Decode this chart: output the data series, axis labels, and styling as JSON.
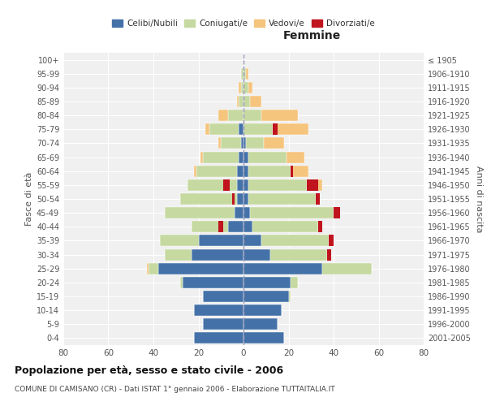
{
  "age_groups": [
    "0-4",
    "5-9",
    "10-14",
    "15-19",
    "20-24",
    "25-29",
    "30-34",
    "35-39",
    "40-44",
    "45-49",
    "50-54",
    "55-59",
    "60-64",
    "65-69",
    "70-74",
    "75-79",
    "80-84",
    "85-89",
    "90-94",
    "95-99",
    "100+"
  ],
  "birth_years": [
    "2001-2005",
    "1996-2000",
    "1991-1995",
    "1986-1990",
    "1981-1985",
    "1976-1980",
    "1971-1975",
    "1966-1970",
    "1961-1965",
    "1956-1960",
    "1951-1955",
    "1946-1950",
    "1941-1945",
    "1936-1940",
    "1931-1935",
    "1926-1930",
    "1921-1925",
    "1916-1920",
    "1911-1915",
    "1906-1910",
    "≤ 1905"
  ],
  "male": {
    "celibi": [
      22,
      18,
      22,
      18,
      27,
      38,
      23,
      20,
      7,
      4,
      3,
      3,
      3,
      2,
      1,
      2,
      0,
      0,
      0,
      0,
      0
    ],
    "coniugati": [
      0,
      0,
      0,
      0,
      1,
      4,
      12,
      17,
      16,
      31,
      25,
      22,
      18,
      16,
      9,
      13,
      7,
      2,
      1,
      1,
      0
    ],
    "vedovi": [
      0,
      0,
      0,
      0,
      0,
      1,
      0,
      0,
      0,
      0,
      0,
      0,
      1,
      1,
      1,
      2,
      4,
      1,
      1,
      0,
      0
    ],
    "divorziati": [
      0,
      0,
      0,
      0,
      0,
      0,
      0,
      0,
      2,
      0,
      1,
      3,
      0,
      0,
      0,
      0,
      0,
      0,
      0,
      0,
      0
    ]
  },
  "female": {
    "nubili": [
      18,
      15,
      17,
      20,
      21,
      35,
      12,
      8,
      4,
      3,
      2,
      2,
      2,
      2,
      1,
      0,
      0,
      0,
      0,
      0,
      0
    ],
    "coniugate": [
      0,
      0,
      0,
      1,
      3,
      22,
      25,
      30,
      29,
      37,
      30,
      26,
      19,
      17,
      8,
      13,
      8,
      3,
      2,
      1,
      0
    ],
    "vedove": [
      0,
      0,
      0,
      0,
      0,
      0,
      0,
      0,
      0,
      2,
      2,
      7,
      8,
      8,
      9,
      16,
      16,
      5,
      2,
      1,
      0
    ],
    "divorziate": [
      0,
      0,
      0,
      0,
      0,
      0,
      2,
      2,
      2,
      3,
      2,
      5,
      1,
      0,
      0,
      2,
      0,
      0,
      0,
      0,
      0
    ]
  },
  "colors": {
    "celibi": "#4472a8",
    "coniugati": "#c5d9a0",
    "vedovi": "#f5c47d",
    "divorziati": "#c0141e"
  },
  "title": "Popolazione per età, sesso e stato civile - 2006",
  "subtitle": "COMUNE DI CAMISANO (CR) - Dati ISTAT 1° gennaio 2006 - Elaborazione TUTTAITALIA.IT",
  "xlabel_right": "Femmine",
  "ylabel_left": "Fasce di età",
  "ylabel_right": "Anni di nascita",
  "xlim": 80,
  "bg_color": "#ffffff",
  "grid_color": "#cccccc"
}
